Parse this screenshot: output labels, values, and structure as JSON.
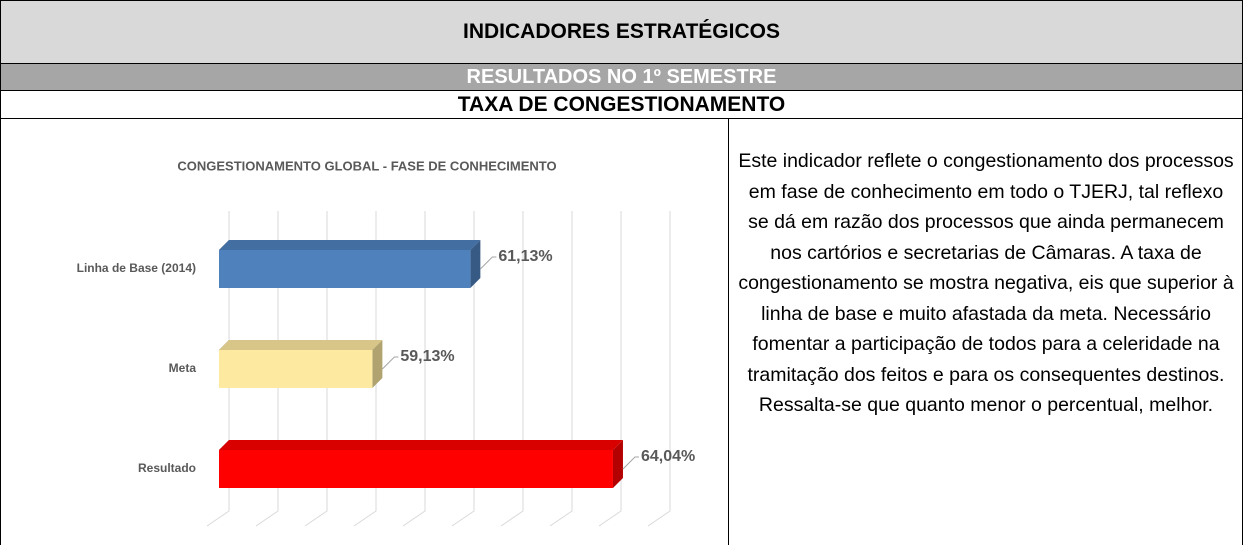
{
  "header": {
    "title": "INDICADORES ESTRATÉGICOS",
    "subtitle": "RESULTADOS NO 1º SEMESTRE",
    "section_title": "TAXA DE CONGESTIONAMENTO"
  },
  "chart_data": {
    "type": "bar",
    "orientation": "horizontal",
    "title": "CONGESTIONAMENTO GLOBAL - FASE DE CONHECIMENTO",
    "categories": [
      "Linha de Base (2014)",
      "Meta",
      "Resultado"
    ],
    "values": [
      61.13,
      59.13,
      64.04
    ],
    "value_labels": [
      "61,13%",
      "59,13%",
      "64,04%"
    ],
    "colors": [
      "#4f81bd",
      "#fde9a0",
      "#ff0000"
    ],
    "xlim": [
      56,
      65
    ],
    "xticks": [
      56,
      57,
      58,
      59,
      60,
      61,
      62,
      63,
      64,
      65
    ],
    "grid": true
  },
  "text": "Este indicador reflete o congestionamento dos processos em fase de conhecimento em todo o TJERJ, tal reflexo se dá em razão dos processos que ainda permanecem nos cartórios e secretarias de Câmaras. A taxa de congestionamento se mostra negativa, eis que superior à linha de base e muito afastada da meta. Necessário fomentar a participação de todos para a celeridade na tramitação dos feitos e para os consequentes destinos. Ressalta-se que quanto menor o percentual, melhor."
}
